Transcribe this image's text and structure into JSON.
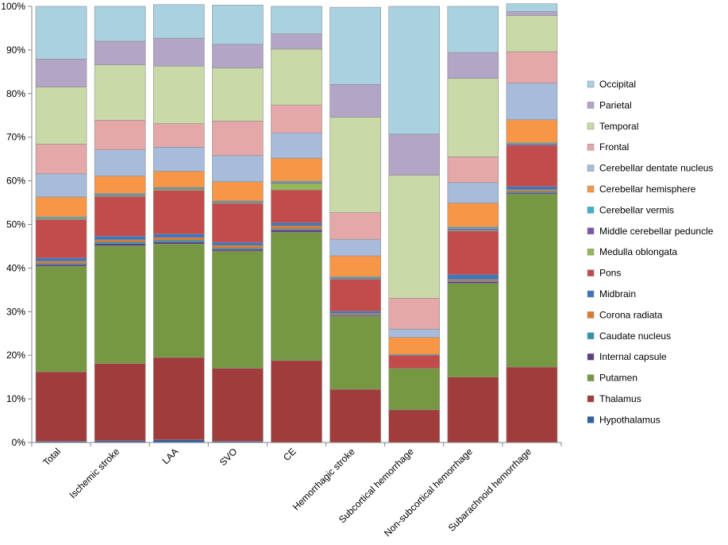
{
  "chart_data": {
    "type": "bar",
    "stacked": true,
    "ylim": [
      0,
      100
    ],
    "y_ticks": [
      "0%",
      "10%",
      "20%",
      "30%",
      "40%",
      "50%",
      "60%",
      "70%",
      "80%",
      "90%",
      "100%"
    ],
    "grid": false,
    "legend_position": "right",
    "title": "",
    "xlabel": "",
    "ylabel": "",
    "categories": [
      "Total",
      "Ischemic stroke",
      "LAA",
      "SVO",
      "CE",
      "Hemorrhagic stroke",
      "Subcortical hemorrhage",
      "Non-subcortical hemorrhage",
      "Subarachnoid hemorrhage"
    ],
    "series": [
      {
        "name": "Hypothalamus",
        "color": "#2e5fa3",
        "values": [
          0.3,
          0.4,
          0.6,
          0.3,
          0.0,
          0.0,
          0.0,
          0.0,
          0.0
        ]
      },
      {
        "name": "Thalamus",
        "color": "#a03c3c",
        "values": [
          15.9,
          17.7,
          18.9,
          16.7,
          18.8,
          12.2,
          7.5,
          15.0,
          17.3
        ]
      },
      {
        "name": "Putamen",
        "color": "#779843",
        "values": [
          24.2,
          27.0,
          26.0,
          26.9,
          29.4,
          16.7,
          9.5,
          21.5,
          39.7
        ]
      },
      {
        "name": "Internal capsule",
        "color": "#5e3f86",
        "values": [
          0.4,
          0.5,
          0.5,
          0.4,
          0.5,
          0.2,
          0.0,
          0.4,
          0.3
        ]
      },
      {
        "name": "Caudate nucleus",
        "color": "#2e94ad",
        "values": [
          0.3,
          0.4,
          0.4,
          0.3,
          0.3,
          0.2,
          0.0,
          0.2,
          0.3
        ]
      },
      {
        "name": "Corona radiata",
        "color": "#e07a2a",
        "values": [
          0.5,
          0.5,
          0.6,
          0.6,
          0.7,
          0.3,
          0.0,
          0.3,
          0.4
        ]
      },
      {
        "name": "Midbrain",
        "color": "#3e74c0",
        "values": [
          0.7,
          0.8,
          0.8,
          0.7,
          0.7,
          0.5,
          0.0,
          1.1,
          0.7
        ]
      },
      {
        "name": "Pons",
        "color": "#c24b4b",
        "values": [
          8.8,
          9.1,
          10.0,
          8.9,
          7.5,
          7.3,
          3.0,
          10.0,
          9.4
        ]
      },
      {
        "name": "Medulla oblongata",
        "color": "#93b855",
        "values": [
          0.2,
          0.2,
          0.3,
          0.2,
          1.5,
          0.1,
          0.0,
          0.2,
          0.0
        ]
      },
      {
        "name": "Middle cerebellar peduncle",
        "color": "#7b56a8",
        "values": [
          0.1,
          0.2,
          0.2,
          0.2,
          0.2,
          0.2,
          0.0,
          0.3,
          0.3
        ]
      },
      {
        "name": "Cerebellar vermis",
        "color": "#3fb2ce",
        "values": [
          0.3,
          0.3,
          0.2,
          0.2,
          0.3,
          0.3,
          0.2,
          0.4,
          0.3
        ]
      },
      {
        "name": "Cerebellar hemisphere",
        "color": "#f79646",
        "values": [
          4.6,
          4.0,
          3.7,
          4.4,
          5.3,
          4.8,
          3.9,
          5.5,
          5.3
        ]
      },
      {
        "name": "Cerebellar dentate nucleus",
        "color": "#a7bcdb",
        "values": [
          5.3,
          6.0,
          5.5,
          6.0,
          5.8,
          3.8,
          1.9,
          4.7,
          8.4
        ]
      },
      {
        "name": "Frontal",
        "color": "#e4a8a8",
        "values": [
          6.8,
          6.8,
          5.4,
          7.9,
          6.4,
          6.1,
          7.1,
          5.9,
          7.2
        ]
      },
      {
        "name": "Temporal",
        "color": "#c9d9a8",
        "values": [
          13.1,
          12.7,
          13.2,
          12.2,
          12.8,
          21.9,
          28.2,
          18.0,
          8.3
        ]
      },
      {
        "name": "Parietal",
        "color": "#b3a5c6",
        "values": [
          6.4,
          5.4,
          6.4,
          5.4,
          3.5,
          7.5,
          9.4,
          5.9,
          0.9
        ]
      },
      {
        "name": "Occipital",
        "color": "#a9d1df",
        "values": [
          12.1,
          8.0,
          7.7,
          9.0,
          6.3,
          17.7,
          29.3,
          10.6,
          1.8
        ]
      }
    ]
  }
}
